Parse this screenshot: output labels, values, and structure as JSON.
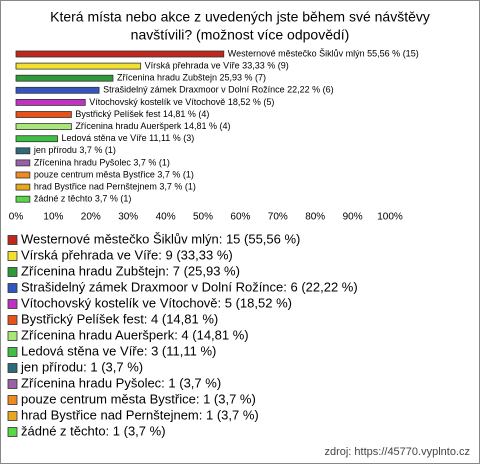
{
  "chart_data": {
    "type": "bar",
    "orientation": "horizontal",
    "title": [
      "Která místa nebo akce z uvedených jste během své návštěvy",
      "navštívili? (možnost více odpovědí)"
    ],
    "categories": [
      "Westernové městečko Šiklův mlýn",
      "Vírská přehrada ve Víře",
      "Zřícenina hradu Zubštejn",
      "Strašidelný zámek Draxmoor v Dolní Rožínce",
      "Vítochovský kostelík ve Vítochově",
      "Bystřický Pelíšek fest",
      "Zřícenina hradu Aueršperk",
      "Ledová stěna ve Víře",
      "jen přírodu",
      "Zřícenina hradu Pyšolec",
      "pouze centrum města Bystřice",
      "hrad Bystřice nad Pernštejnem",
      "žádné z těchto"
    ],
    "values": [
      55.56,
      33.33,
      25.93,
      22.22,
      18.52,
      14.81,
      14.81,
      11.11,
      3.7,
      3.7,
      3.7,
      3.7,
      3.7
    ],
    "counts": [
      15,
      9,
      7,
      6,
      5,
      4,
      4,
      3,
      1,
      1,
      1,
      1,
      1
    ],
    "value_labels": [
      "Westernové městečko Šiklův mlýn 55,56 % (15)",
      "Vírská přehrada ve Víře 33,33 % (9)",
      "Zřícenina hradu Zubštejn 25,93 % (7)",
      "Strašidelný zámek Draxmoor v Dolní Rožínce 22,22 % (6)",
      "Vítochovský kostelík ve Vítochově 18,52 % (5)",
      "Bystřický Pelíšek fest 14,81 % (4)",
      "Zřícenina hradu Aueršperk 14,81 % (4)",
      "Ledová stěna ve Víře 11,11 % (3)",
      "jen přírodu 3,7 % (1)",
      "Zřícenina hradu Pyšolec 3,7 % (1)",
      "pouze centrum města Bystřice 3,7 % (1)",
      "hrad Bystřice nad Pernštejnem 3,7 % (1)",
      "žádné z těchto 3,7 % (1)"
    ],
    "legend_labels": [
      "Westernové městečko Šiklův mlýn: 15 (55,56 %)",
      "Vírská přehrada ve Víře: 9 (33,33 %)",
      "Zřícenina hradu Zubštejn: 7 (25,93 %)",
      "Strašidelný zámek Draxmoor v Dolní Rožínce: 6 (22,22 %)",
      "Vítochovský kostelík ve Vítochově: 5 (18,52 %)",
      "Bystřický Pelíšek fest: 4 (14,81 %)",
      "Zřícenina hradu Aueršperk: 4 (14,81 %)",
      "Ledová stěna ve Víře: 3 (11,11 %)",
      "jen přírodu: 1 (3,7 %)",
      "Zřícenina hradu Pyšolec: 1 (3,7 %)",
      "pouze centrum města Bystřice: 1 (3,7 %)",
      "hrad Bystřice nad Pernštejnem: 1 (3,7 %)",
      "žádné z těchto: 1 (3,7 %)"
    ],
    "colors": [
      "#c0281e",
      "#f2e030",
      "#2e9a3a",
      "#3455c0",
      "#c032c0",
      "#e8501c",
      "#a8e67a",
      "#3fbf45",
      "#2f6a7a",
      "#9a62a6",
      "#f08a20",
      "#e8a81e",
      "#58d848"
    ],
    "xlim": [
      0,
      100
    ],
    "xticks": [
      {
        "value": 0,
        "label": "0%"
      },
      {
        "value": 10,
        "label": "10%"
      },
      {
        "value": 20,
        "label": "20%"
      },
      {
        "value": 30,
        "label": "30%"
      },
      {
        "value": 40,
        "label": "40%"
      },
      {
        "value": 50,
        "label": "50%"
      },
      {
        "value": 60,
        "label": "60%"
      },
      {
        "value": 70,
        "label": "70%"
      },
      {
        "value": 80,
        "label": "80%"
      },
      {
        "value": 90,
        "label": "90%"
      },
      {
        "value": 100,
        "label": "100%"
      }
    ],
    "grid": false,
    "source": "zdroj: https://45770.vyplnto.cz"
  }
}
